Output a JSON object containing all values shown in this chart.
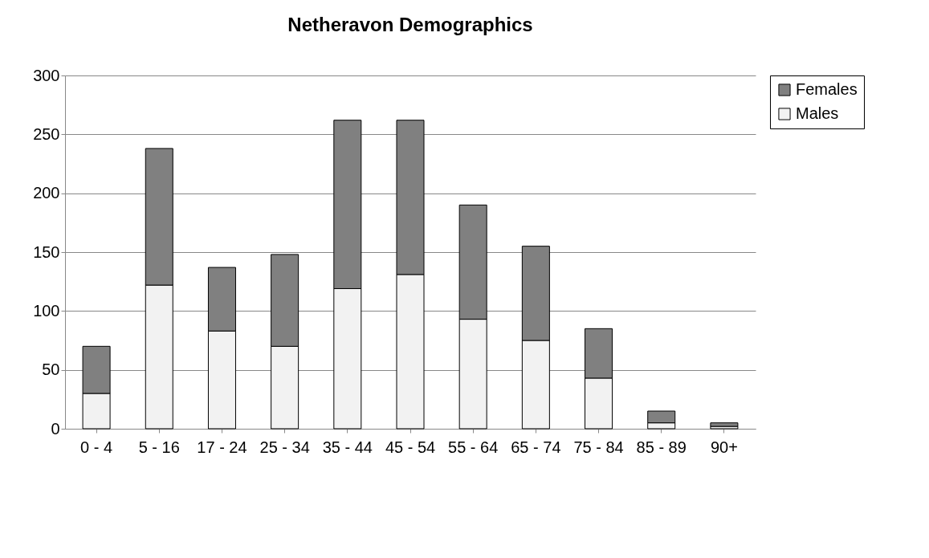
{
  "chart_data": {
    "type": "bar",
    "title": "Netheravon Demographics",
    "stacked": true,
    "categories": [
      "0 - 4",
      "5 - 16",
      "17 - 24",
      "25 - 34",
      "35 - 44",
      "45 - 54",
      "55 - 64",
      "65 - 74",
      "75 - 84",
      "85 - 89",
      "90+"
    ],
    "series": [
      {
        "name": "Males",
        "color": "#f2f2f2",
        "values": [
          30,
          122,
          83,
          70,
          119,
          131,
          93,
          75,
          43,
          5,
          2
        ]
      },
      {
        "name": "Females",
        "color": "#808080",
        "values": [
          40,
          116,
          54,
          78,
          143,
          131,
          97,
          80,
          42,
          10,
          3
        ]
      }
    ],
    "ylim": [
      0,
      300
    ],
    "yticks": [
      0,
      50,
      100,
      150,
      200,
      250,
      300
    ],
    "grid": "y",
    "legend": "right"
  }
}
